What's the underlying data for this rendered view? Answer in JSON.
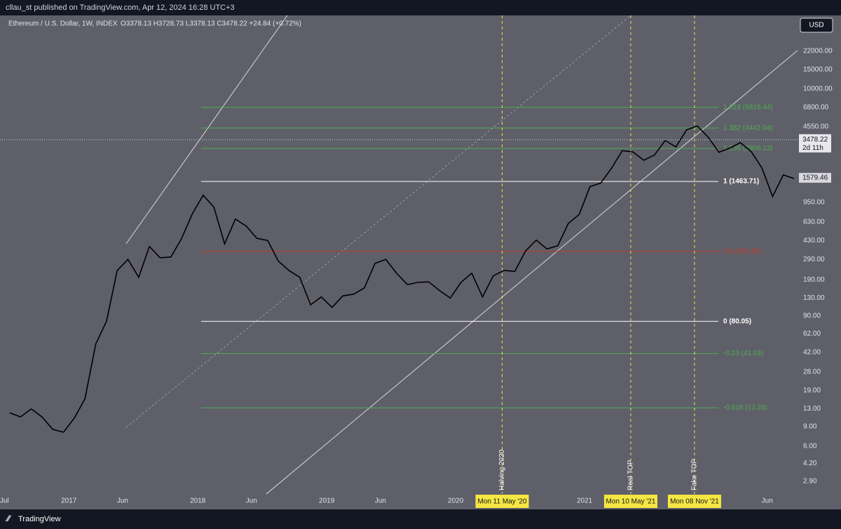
{
  "header": {
    "publisher": "cllau_st published on TradingView.com, Apr 12, 2024 16:28 UTC+3",
    "brand": "TradingView"
  },
  "chart_data": {
    "type": "line",
    "title": "Ethereum / U.S. Dollar, 1W, INDEX",
    "ohlc": "O3378.13 H3728.73 L3378.13 C3478.22 +24.84 (+0.72%)",
    "currency": "USD",
    "color": "#000000",
    "log_scale": true,
    "x": [
      "2016-07",
      "2016-08",
      "2016-09",
      "2016-10",
      "2016-11",
      "2016-12",
      "2017-01",
      "2017-02",
      "2017-03",
      "2017-04",
      "2017-05",
      "2017-06",
      "2017-07",
      "2017-08",
      "2017-09",
      "2017-10",
      "2017-11",
      "2017-12",
      "2018-01",
      "2018-02",
      "2018-03",
      "2018-04",
      "2018-05",
      "2018-06",
      "2018-07",
      "2018-08",
      "2018-09",
      "2018-10",
      "2018-11",
      "2018-12",
      "2019-01",
      "2019-02",
      "2019-03",
      "2019-04",
      "2019-05",
      "2019-06",
      "2019-07",
      "2019-08",
      "2019-09",
      "2019-10",
      "2019-11",
      "2019-12",
      "2020-01",
      "2020-02",
      "2020-03",
      "2020-04",
      "2020-05",
      "2020-06",
      "2020-07",
      "2020-08",
      "2020-09",
      "2020-10",
      "2020-11",
      "2020-12",
      "2021-01",
      "2021-02",
      "2021-03",
      "2021-04",
      "2021-05",
      "2021-06",
      "2021-07",
      "2021-08",
      "2021-09",
      "2021-10",
      "2021-11",
      "2021-12",
      "2022-01",
      "2022-02",
      "2022-03",
      "2022-04",
      "2022-05",
      "2022-06",
      "2022-07",
      "2022-08"
    ],
    "values": [
      12,
      11,
      13,
      11,
      8.5,
      8,
      10.7,
      16,
      50,
      80,
      230,
      290,
      200,
      380,
      300,
      305,
      450,
      750,
      1100,
      860,
      400,
      670,
      580,
      450,
      430,
      280,
      230,
      200,
      113,
      133,
      107,
      136,
      141,
      160,
      268,
      290,
      218,
      172,
      180,
      182,
      152,
      130,
      180,
      218,
      133,
      206,
      231,
      226,
      345,
      433,
      360,
      386,
      615,
      737,
      1314,
      1416,
      1918,
      2773,
      2707,
      2275,
      2536,
      3433,
      3000,
      4288,
      4630,
      3683,
      2687,
      2920,
      3282,
      2730,
      1942,
      1070,
      1680,
      1554
    ],
    "xlim": [
      "2016-06-19",
      "2022-08-26"
    ],
    "xticks": [
      {
        "value": "2016-07",
        "label": "Jul"
      },
      {
        "value": "2017-01",
        "label": "2017"
      },
      {
        "value": "2017-06",
        "label": "Jun"
      },
      {
        "value": "2018-01",
        "label": "2018"
      },
      {
        "value": "2018-06",
        "label": "Jun"
      },
      {
        "value": "2019-01",
        "label": "2019"
      },
      {
        "value": "2019-06",
        "label": "Jun"
      },
      {
        "value": "2020-01",
        "label": "2020"
      },
      {
        "value": "2021-01",
        "label": "2021"
      },
      {
        "value": "2022-06",
        "label": "Jun"
      }
    ],
    "ylim": [
      2.22,
      46100
    ],
    "yticks": [
      {
        "value": 22000,
        "label": "22000.00"
      },
      {
        "value": 15000,
        "label": "15000.00"
      },
      {
        "value": 10000,
        "label": "10000.00"
      },
      {
        "value": 6800,
        "label": "6800.00"
      },
      {
        "value": 4550,
        "label": "4550.00"
      },
      {
        "value": 950,
        "label": "950.00"
      },
      {
        "value": 630,
        "label": "630.00"
      },
      {
        "value": 430,
        "label": "430.00"
      },
      {
        "value": 290,
        "label": "290.00"
      },
      {
        "value": 190,
        "label": "190.00"
      },
      {
        "value": 130,
        "label": "130.00"
      },
      {
        "value": 90,
        "label": "90.00"
      },
      {
        "value": 62,
        "label": "62.00"
      },
      {
        "value": 42,
        "label": "42.00"
      },
      {
        "value": 28,
        "label": "28.00"
      },
      {
        "value": 19,
        "label": "19.00"
      },
      {
        "value": 13,
        "label": "13.00"
      },
      {
        "value": 9,
        "label": "9.00"
      },
      {
        "value": 6,
        "label": "6.00"
      },
      {
        "value": 4.2,
        "label": "4.20"
      },
      {
        "value": 2.9,
        "label": "2.90"
      }
    ],
    "fib_levels": [
      {
        "value": 6819.44,
        "label": "1.618 (6819.44)",
        "color": "#4caf50"
      },
      {
        "value": 4442.04,
        "label": "1.382 (4442.04)",
        "color": "#4caf50"
      },
      {
        "value": 2906.13,
        "label": "1.236 (2906.13)",
        "color": "#4caf50"
      },
      {
        "value": 1463.71,
        "label": "1 (1463.71)",
        "color": "#ffffff"
      },
      {
        "value": 342.3,
        "label": "0.5 (342.30)",
        "color": "#c0392b"
      },
      {
        "value": 80.05,
        "label": "0 (80.05)",
        "color": "#ffffff"
      },
      {
        "value": 41.03,
        "label": "-0.23 (41.03)",
        "color": "#4caf50"
      },
      {
        "value": 13.28,
        "label": "-0.618 (13.28)",
        "color": "#4caf50"
      }
    ],
    "markers": [
      {
        "x": "2020-05-11",
        "label": "Halving 2020",
        "date_label": "Mon 11 May '20"
      },
      {
        "x": "2021-05-10",
        "label": "Real TOP",
        "date_label": "Mon 10 May '21"
      },
      {
        "x": "2021-11-08",
        "label": "Fake TOP",
        "date_label": "Mon 08 Nov '21"
      }
    ],
    "price_line": {
      "value": 3478.22,
      "countdown": "2d 11h"
    },
    "last_visible_close": 1579.46
  }
}
